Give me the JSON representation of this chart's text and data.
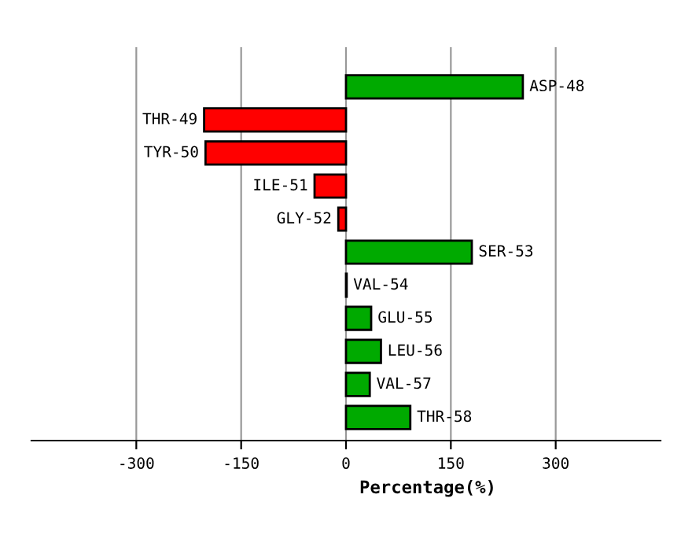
{
  "chart_data": {
    "type": "bar",
    "orientation": "horizontal",
    "xlabel": "Percentage(%)",
    "categories": [
      "ASP-48",
      "THR-49",
      "TYR-50",
      "ILE-51",
      "GLY-52",
      "SER-53",
      "VAL-54",
      "GLU-55",
      "LEU-56",
      "VAL-57",
      "THR-58"
    ],
    "values": [
      253,
      -203,
      -201,
      -45,
      -11,
      180,
      1,
      36,
      50,
      34,
      92
    ],
    "colors": [
      "#00aa00",
      "#ff0000",
      "#ff0000",
      "#ff0000",
      "#ff0000",
      "#00aa00",
      "#00aa00",
      "#00aa00",
      "#00aa00",
      "#00aa00",
      "#00aa00"
    ],
    "xlim": [
      -450,
      450
    ],
    "xticks": [
      -300,
      -150,
      0,
      150,
      300
    ],
    "grid": "x"
  }
}
